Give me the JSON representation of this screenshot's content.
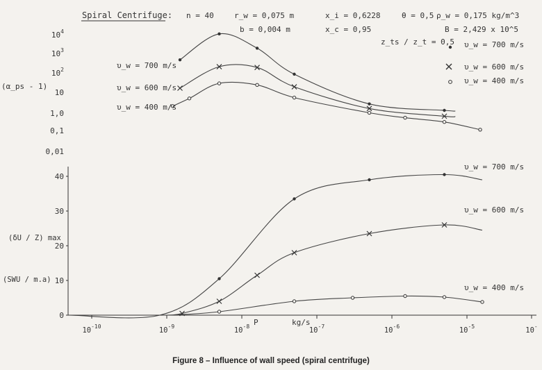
{
  "header": {
    "title": "Spiral Centrifuge:",
    "params": [
      "n = 40",
      "r_w = 0,075 m",
      "b = 0,004 m",
      "x_i = 0,6228",
      "x_c = 0,95",
      "z_ts / z_t = 0,5",
      "θ = 0,5",
      "ρ_w = 0,175 kg/m^3",
      "B = 2,429 x 10^5"
    ]
  },
  "legend": {
    "items": [
      {
        "marker": "dot",
        "label": "υ_w = 700 m/s"
      },
      {
        "marker": "cross",
        "label": "υ_w = 600 m/s"
      },
      {
        "marker": "circle",
        "label": "υ_w = 400 m/s"
      }
    ]
  },
  "upper_axis": {
    "ylabel": "(α_ps - 1)",
    "ticks": [
      "10^4",
      "10^3",
      "10^2",
      "10",
      "1,0",
      "0,1",
      "0,01"
    ]
  },
  "lower_axis": {
    "ylabel_1": "(δU / Z) max",
    "ylabel_2": "(SWU / m.a)",
    "ticks": [
      "0",
      "10",
      "20",
      "30",
      "40"
    ]
  },
  "x_axis": {
    "label": "P",
    "unit": "kg/s",
    "ticks": [
      "10^-10",
      "10^-9",
      "10^-8",
      "10^-7",
      "10^-6",
      "10^-5",
      "10^-"
    ]
  },
  "caption": "Figure 8 – Influence of wall speed (spiral centrifuge)",
  "chart_data": [
    {
      "type": "line",
      "panel": "upper",
      "xscale": "log",
      "yscale": "log",
      "ylabel": "(α_ps - 1)",
      "xlabel": "P kg/s",
      "series": [
        {
          "name": "υ_w = 700 m/s",
          "marker": "dot",
          "labels": [
            "υ_w = 700 m/s"
          ],
          "x": [
            1.5e-09,
            5e-09,
            1.6e-08,
            5e-08,
            5e-07,
            5e-06
          ],
          "y": [
            500,
            11000,
            2000,
            90,
            2.6,
            1.2
          ]
        },
        {
          "name": "υ_w = 600 m/s",
          "marker": "cross",
          "labels": [
            "υ_w = 600 m/s"
          ],
          "x": [
            1.5e-09,
            5e-09,
            1.6e-08,
            5e-08,
            5e-07,
            5e-06
          ],
          "y": [
            17,
            220,
            200,
            20,
            1.5,
            0.6
          ]
        },
        {
          "name": "υ_w = 400 m/s",
          "marker": "circle",
          "labels": [
            "υ_w = 400 m/s"
          ],
          "x": [
            1.2e-09,
            2e-09,
            5e-09,
            1.6e-08,
            5e-08,
            5e-07,
            1.5e-06,
            5e-06,
            1.5e-05
          ],
          "y": [
            2.0,
            5.0,
            30,
            25,
            5.5,
            0.9,
            0.5,
            0.3,
            0.12
          ]
        }
      ]
    },
    {
      "type": "line",
      "panel": "lower",
      "xscale": "log",
      "ylim": [
        0,
        40
      ],
      "xlabel": "P kg/s",
      "series": [
        {
          "name": "υ_w = 700 m/s",
          "marker": "dot",
          "labels": [
            "υ_w = 700 m/s"
          ],
          "x": [
            5e-09,
            5e-08,
            5e-07,
            5e-06
          ],
          "y": [
            10.5,
            33.5,
            39,
            40.5
          ]
        },
        {
          "name": "υ_w = 600 m/s",
          "marker": "cross",
          "labels": [
            "υ_w = 600 m/s"
          ],
          "x": [
            1.6e-09,
            5e-09,
            1.6e-08,
            5e-08,
            5e-07,
            5e-06
          ],
          "y": [
            0.5,
            4,
            11.5,
            18,
            23.5,
            26
          ]
        },
        {
          "name": "υ_w = 400 m/s",
          "marker": "circle",
          "labels": [
            "υ_w = 400 m/s"
          ],
          "x": [
            5e-09,
            5e-08,
            3e-07,
            1.5e-06,
            5e-06,
            1.6e-05
          ],
          "y": [
            1,
            4,
            5,
            5.5,
            5.2,
            3.8
          ]
        }
      ]
    }
  ]
}
